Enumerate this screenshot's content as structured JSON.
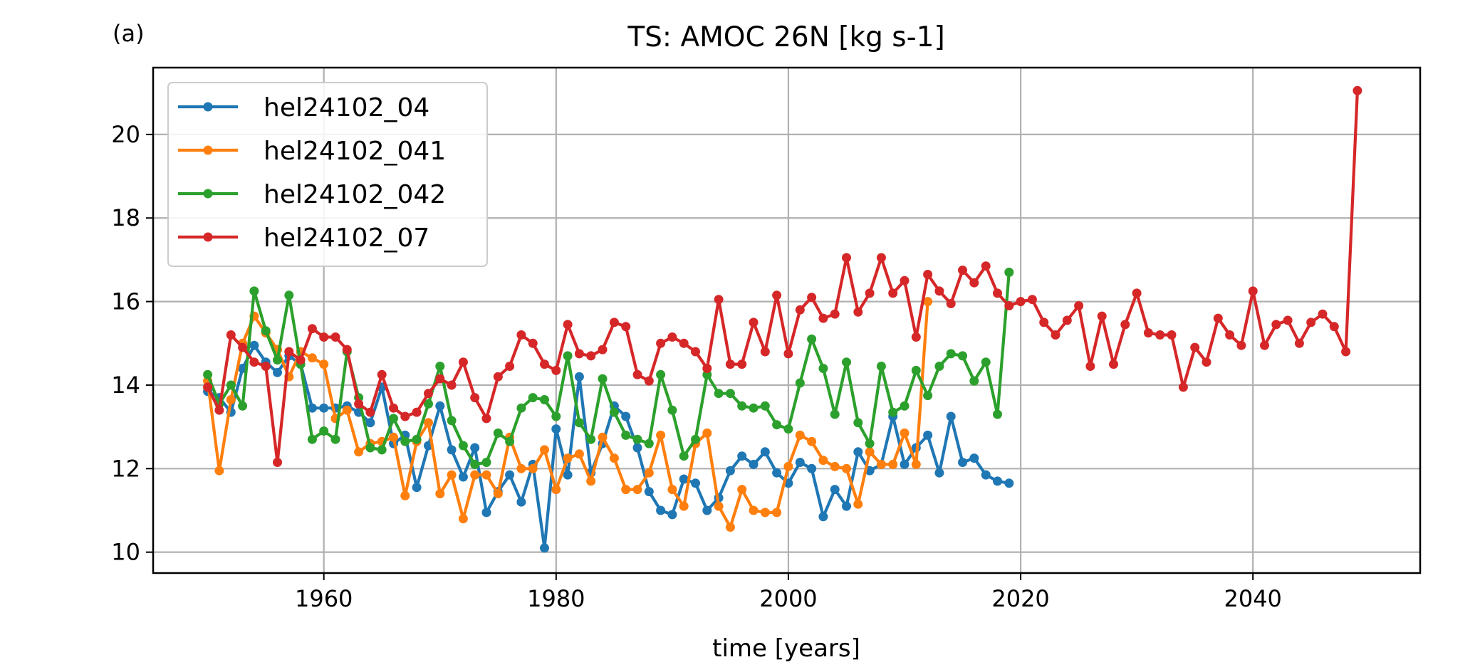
{
  "chart_data": {
    "type": "line",
    "panel_label": "(a)",
    "title": "TS: AMOC 26N [kg s-1]",
    "xlabel": "time [years]",
    "ylabel": "",
    "xlim": [
      1945.3,
      2054.4
    ],
    "ylim": [
      9.5,
      21.6
    ],
    "xticks": [
      1960,
      1980,
      2000,
      2020,
      2040
    ],
    "yticks": [
      10,
      12,
      14,
      16,
      18,
      20
    ],
    "grid": true,
    "legend_position": "top-left",
    "series": [
      {
        "name": "hel24102_04",
        "color": "#1f77b4",
        "start_year": 1950,
        "values": [
          13.85,
          13.7,
          13.35,
          14.4,
          14.95,
          14.55,
          14.3,
          14.7,
          14.5,
          13.45,
          13.45,
          13.45,
          13.5,
          13.35,
          13.1,
          13.95,
          12.6,
          12.8,
          11.55,
          12.55,
          13.5,
          12.45,
          11.8,
          12.5,
          10.95,
          11.45,
          11.85,
          11.2,
          12.1,
          10.1,
          12.95,
          11.85,
          14.2,
          11.9,
          12.6,
          13.5,
          13.25,
          12.5,
          11.45,
          11.0,
          10.9,
          11.75,
          11.65,
          11.0,
          11.3,
          11.95,
          12.3,
          12.1,
          12.4,
          11.9,
          11.65,
          12.15,
          12.0,
          10.85,
          11.5,
          11.1,
          12.4,
          11.95,
          12.1,
          13.25,
          12.1,
          12.5,
          12.8,
          11.9,
          13.25,
          12.15,
          12.25,
          11.85,
          11.7,
          11.65
        ]
      },
      {
        "name": "hel24102_041",
        "color": "#ff7f0e",
        "start_year": 1950,
        "values": [
          14.1,
          11.95,
          13.65,
          15.0,
          15.65,
          15.25,
          14.85,
          14.2,
          14.8,
          14.65,
          14.5,
          13.2,
          13.4,
          12.4,
          12.6,
          12.65,
          12.75,
          11.35,
          12.65,
          13.1,
          11.4,
          11.85,
          10.8,
          11.85,
          11.85,
          11.4,
          12.75,
          12.0,
          12.0,
          12.45,
          11.5,
          12.25,
          12.35,
          11.7,
          12.75,
          12.25,
          11.5,
          11.5,
          11.9,
          12.8,
          11.5,
          11.1,
          12.6,
          12.85,
          11.1,
          10.6,
          11.5,
          11.0,
          10.95,
          10.95,
          12.05,
          12.8,
          12.65,
          12.2,
          12.05,
          12.0,
          11.15,
          12.4,
          12.1,
          12.1,
          12.85,
          12.1,
          16.0
        ]
      },
      {
        "name": "hel24102_042",
        "color": "#2ca02c",
        "start_year": 1950,
        "values": [
          14.25,
          13.55,
          14.0,
          13.5,
          16.25,
          15.3,
          14.6,
          16.15,
          14.5,
          12.7,
          12.9,
          12.7,
          14.8,
          13.7,
          12.5,
          12.45,
          13.2,
          12.65,
          12.7,
          13.55,
          14.45,
          13.15,
          12.55,
          12.1,
          12.15,
          12.85,
          12.65,
          13.45,
          13.7,
          13.65,
          13.25,
          14.7,
          13.1,
          12.7,
          14.15,
          13.35,
          12.8,
          12.7,
          12.6,
          14.25,
          13.4,
          12.3,
          12.7,
          14.25,
          13.8,
          13.8,
          13.5,
          13.45,
          13.5,
          13.05,
          12.95,
          14.05,
          15.1,
          14.4,
          13.3,
          14.55,
          13.1,
          12.6,
          14.45,
          13.35,
          13.5,
          14.35,
          13.75,
          14.45,
          14.75,
          14.7,
          14.1,
          14.55,
          13.3,
          16.7
        ]
      },
      {
        "name": "hel24102_07",
        "color": "#d62728",
        "start_year": 1950,
        "values": [
          13.95,
          13.4,
          15.2,
          14.9,
          14.55,
          14.45,
          12.15,
          14.8,
          14.6,
          15.35,
          15.15,
          15.15,
          14.85,
          13.55,
          13.35,
          14.25,
          13.45,
          13.25,
          13.35,
          13.8,
          14.15,
          14.0,
          14.55,
          13.7,
          13.2,
          14.2,
          14.45,
          15.2,
          15.0,
          14.5,
          14.35,
          15.45,
          14.75,
          14.7,
          14.85,
          15.5,
          15.4,
          14.25,
          14.1,
          15.0,
          15.15,
          15.0,
          14.8,
          14.4,
          16.05,
          14.5,
          14.5,
          15.5,
          14.8,
          16.15,
          14.75,
          15.8,
          16.1,
          15.6,
          15.7,
          17.05,
          15.75,
          16.2,
          17.05,
          16.2,
          16.5,
          15.15,
          16.65,
          16.25,
          15.95,
          16.75,
          16.45,
          16.85,
          16.2,
          15.9,
          16.0,
          16.05,
          15.5,
          15.2,
          15.55,
          15.9,
          14.45,
          15.65,
          14.5,
          15.45,
          16.2,
          15.25,
          15.2,
          15.2,
          13.95,
          14.9,
          14.55,
          15.6,
          15.2,
          14.95,
          16.25,
          14.95,
          15.45,
          15.55,
          15.0,
          15.5,
          15.7,
          15.4,
          14.8,
          21.05
        ]
      }
    ]
  }
}
